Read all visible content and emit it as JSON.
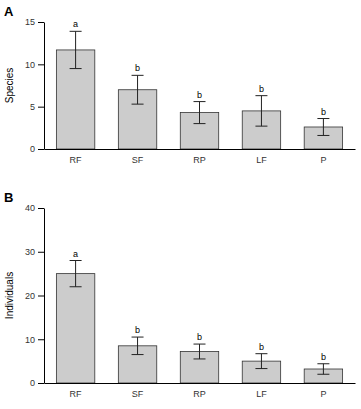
{
  "chart_data": [
    {
      "type": "bar",
      "title": "A",
      "y_label": "Species",
      "categories": [
        "RF",
        "SF",
        "RP",
        "LF",
        "P"
      ],
      "values": [
        11.7,
        7.0,
        4.3,
        4.5,
        2.6
      ],
      "errors": [
        2.2,
        1.7,
        1.3,
        1.8,
        1.0
      ],
      "annotations": [
        "a",
        "b",
        "b",
        "b",
        "b"
      ],
      "color": "#cccccc",
      "ylim": [
        0,
        15
      ],
      "yticks": [
        0,
        5,
        10,
        15
      ],
      "grid": false
    },
    {
      "type": "bar",
      "title": "B",
      "y_label": "Individuals",
      "categories": [
        "RF",
        "SF",
        "RP",
        "LF",
        "P"
      ],
      "values": [
        25,
        8.5,
        7.2,
        5.0,
        3.2
      ],
      "errors": [
        3.0,
        2.0,
        1.7,
        1.7,
        1.2
      ],
      "annotations": [
        "a",
        "b",
        "b",
        "b",
        "b"
      ],
      "color": "#cccccc",
      "ylim": [
        0,
        40
      ],
      "yticks": [
        0,
        10,
        20,
        30,
        40
      ],
      "grid": false
    }
  ]
}
